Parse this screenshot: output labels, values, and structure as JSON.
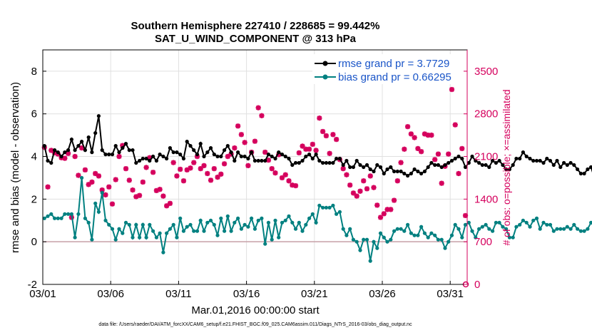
{
  "chart_data": {
    "type": "line",
    "title": "Southern Hemisphere 227410 / 228685 = 99.442%",
    "subtitle": "SAT_U_WIND_COMPONENT @ 313 hPa",
    "ylabel": "rmse and bias (model - observation)",
    "ylabel_right": "# of obs: o=possible; ×=assimilated",
    "xlabel": "Mar.01,2016 00:00:00 start",
    "footnote": "data file: /Users/raeder/DAI/ATM_forcXX/CAM6_setup/f.e21.FHIST_BGC.f09_025.CAM6assim.011/Diags_NTrS_2016-03/obs_diag_output.nc",
    "x_ticks": [
      {
        "day": 1,
        "label": "03/01"
      },
      {
        "day": 6,
        "label": "03/06"
      },
      {
        "day": 11,
        "label": "03/11"
      },
      {
        "day": 16,
        "label": "03/16"
      },
      {
        "day": 21,
        "label": "03/21"
      },
      {
        "day": 26,
        "label": "03/26"
      },
      {
        "day": 31,
        "label": "03/31"
      }
    ],
    "xlim": [
      1,
      32.25
    ],
    "ylim": [
      -2,
      9
    ],
    "y_ticks": [
      "-2",
      "0",
      "2",
      "4",
      "6",
      "8"
    ],
    "ylim_right": [
      0,
      3850
    ],
    "y_ticks_right": [
      "0",
      "700",
      "1400",
      "2100",
      "2800",
      "3500"
    ],
    "legend_position": "top-right",
    "colors": {
      "rmse": "#000000",
      "bias": "#008080",
      "obs": "#d5005d",
      "zero_line": "#c8a0a8",
      "grid": "#e0e0e0"
    },
    "series": [
      {
        "name": "rmse grand pr = 3.7729",
        "color": "#000000",
        "values": [
          4.5,
          3.8,
          3.7,
          4.3,
          4.2,
          4.0,
          4.2,
          4.3,
          4.8,
          4.3,
          4.5,
          4.7,
          4.3,
          4.9,
          4.2,
          5.1,
          5.9,
          4.3,
          4.1,
          4.1,
          4.1,
          4.5,
          4.2,
          4.4,
          4.6,
          4.3,
          4.3,
          3.7,
          3.8,
          3.9,
          3.9,
          3.8,
          4.0,
          3.8,
          4.1,
          4.0,
          3.9,
          4.4,
          4.2,
          4.2,
          4.1,
          3.9,
          4.7,
          4.5,
          4.3,
          4.1,
          4.6,
          4.0,
          4.2,
          4.4,
          4.1,
          4.0,
          4.0,
          4.3,
          4.5,
          4.2,
          3.8,
          4.2,
          4.0,
          4.0,
          3.9,
          4.2,
          3.8,
          3.8,
          3.8,
          3.8,
          4.1,
          4.0,
          3.9,
          4.2,
          4.1,
          4.0,
          3.9,
          3.6,
          3.7,
          3.7,
          3.8,
          4.0,
          4.1,
          3.9,
          4.1,
          3.8,
          3.7,
          3.7,
          3.7,
          3.7,
          3.9,
          3.9,
          3.6,
          3.8,
          3.5,
          3.5,
          3.8,
          3.6,
          3.5,
          3.6,
          3.4,
          3.3,
          3.6,
          3.5,
          3.2,
          3.4,
          3.5,
          3.3,
          3.3,
          3.3,
          3.2,
          3.1,
          3.2,
          3.4,
          3.3,
          3.2,
          3.3,
          3.5,
          3.7,
          3.6,
          3.6,
          3.5,
          3.6,
          3.7,
          3.8,
          3.9,
          4.0,
          3.9,
          3.5,
          3.7,
          4.0,
          3.8,
          3.7,
          3.6,
          3.6,
          3.5,
          3.8,
          3.7,
          3.8,
          3.6,
          3.4,
          3.4,
          3.6,
          3.9,
          3.9,
          4.2,
          4.0,
          3.9,
          3.8,
          3.8,
          3.8,
          3.7,
          3.9,
          3.8,
          3.6,
          3.8,
          3.5,
          3.7,
          3.6,
          3.7,
          3.6,
          3.4,
          3.2,
          3.2,
          3.4,
          3.5,
          3.0,
          3.3,
          2.9,
          2.9,
          3.1,
          3.0,
          2.9,
          3.4,
          3.5,
          3.7,
          3.6,
          3.3,
          3.2,
          3.3,
          3.4,
          3.5,
          3.6,
          3.5,
          3.6,
          3.5,
          3.6,
          3.7,
          3.6
        ]
      },
      {
        "name": "bias grand pr = 0.66295",
        "color": "#008080",
        "values": [
          1.1,
          1.2,
          1.3,
          1.1,
          1.1,
          1.1,
          1.3,
          1.3,
          1.3,
          0.2,
          1.3,
          3.0,
          1.1,
          0.9,
          0.1,
          1.8,
          1.4,
          2.3,
          1.0,
          0.8,
          0.6,
          0.1,
          0.6,
          0.4,
          0.9,
          0.8,
          0.2,
          0.8,
          0.2,
          0.8,
          0.2,
          0.8,
          0.5,
          0.2,
          0.4,
          -0.5,
          0.4,
          0.6,
          0.8,
          0.2,
          1.1,
          0.5,
          0.7,
          0.8,
          0.5,
          0.5,
          1.0,
          0.5,
          0.9,
          1.0,
          0.8,
          0.3,
          1.1,
          0.5,
          1.2,
          0.5,
          0.9,
          1.1,
          0.6,
          0.8,
          0.7,
          1.1,
          0.6,
          1.0,
          1.1,
          -0.1,
          0.9,
          0.1,
          1.0,
          0.2,
          0.9,
          1.0,
          1.2,
          0.9,
          0.6,
          0.9,
          0.5,
          0.8,
          1.1,
          1.3,
          0.9,
          1.7,
          1.6,
          1.6,
          1.6,
          1.7,
          1.3,
          1.4,
          0.6,
          0.3,
          0.6,
          0.1,
          0.0,
          -0.4,
          0.1,
          0.1,
          -0.9,
          0.0,
          -0.3,
          0.4,
          0.2,
          0.0,
          0.1,
          0.5,
          0.6,
          0.6,
          0.5,
          0.8,
          0.4,
          0.3,
          0.3,
          0.7,
          0.4,
          0.2,
          0.4,
          0.3,
          0.1,
          0.1,
          -0.3,
          0.0,
          0.3,
          0.8,
          0.6,
          0.2,
          0.8,
          0.9,
          0.5,
          0.2,
          0.6,
          0.7,
          0.8,
          0.6,
          0.5,
          0.9,
          0.9,
          0.7,
          0.6,
          0.2,
          0.2,
          0.7,
          0.8,
          1.0,
          0.9,
          0.7,
          1.0,
          1.1,
          0.6,
          0.9,
          0.8,
          0.8,
          0.5,
          0.6,
          0.6,
          0.6,
          0.7,
          0.6,
          0.8,
          0.6,
          0.5,
          0.5,
          0.6,
          0.9,
          0.7,
          0.6,
          0.8,
          0.7,
          0.8,
          0.7,
          0.5,
          0.9,
          0.6,
          0.8,
          0.8,
          1.0,
          0.7,
          0.8,
          0.7,
          0.8,
          1.3,
          1.1,
          1.2,
          1.4
        ]
      }
    ],
    "obs_assimilated": [
      [
        1.12,
        2250
      ],
      [
        1.37,
        1600
      ],
      [
        1.62,
        2200
      ],
      [
        1.87,
        2160
      ],
      [
        2.12,
        2140
      ],
      [
        2.37,
        2080
      ],
      [
        2.62,
        2070
      ],
      [
        2.87,
        2150
      ],
      [
        3.12,
        1100
      ],
      [
        3.37,
        2100
      ],
      [
        3.62,
        1790
      ],
      [
        3.87,
        2240
      ],
      [
        4.12,
        1880
      ],
      [
        4.37,
        1640
      ],
      [
        4.62,
        1680
      ],
      [
        4.87,
        1820
      ],
      [
        5.12,
        1780
      ],
      [
        5.37,
        1550
      ],
      [
        5.62,
        1470
      ],
      [
        5.87,
        1600
      ],
      [
        6.12,
        1320
      ],
      [
        6.37,
        1720
      ],
      [
        6.62,
        2100
      ],
      [
        6.87,
        2280
      ],
      [
        7.12,
        1900
      ],
      [
        7.37,
        1710
      ],
      [
        7.62,
        1550
      ],
      [
        7.87,
        1440
      ],
      [
        8.12,
        1460
      ],
      [
        8.37,
        1680
      ],
      [
        8.62,
        1920
      ],
      [
        8.87,
        2080
      ],
      [
        9.12,
        1840
      ],
      [
        9.37,
        1540
      ],
      [
        9.62,
        1560
      ],
      [
        9.87,
        1450
      ],
      [
        10.12,
        1290
      ],
      [
        10.37,
        1330
      ],
      [
        10.62,
        2000
      ],
      [
        10.87,
        1780
      ],
      [
        11.12,
        1890
      ],
      [
        11.37,
        1700
      ],
      [
        11.62,
        1880
      ],
      [
        11.87,
        1910
      ],
      [
        12.12,
        2000
      ],
      [
        12.37,
        2100
      ],
      [
        12.62,
        1900
      ],
      [
        12.87,
        1950
      ],
      [
        13.12,
        1820
      ],
      [
        13.37,
        1710
      ],
      [
        13.62,
        1900
      ],
      [
        13.87,
        1760
      ],
      [
        14.12,
        1810
      ],
      [
        14.37,
        1980
      ],
      [
        14.62,
        2100
      ],
      [
        14.87,
        2140
      ],
      [
        15.12,
        2240
      ],
      [
        15.37,
        2600
      ],
      [
        15.62,
        2460
      ],
      [
        15.87,
        2330
      ],
      [
        16.12,
        1950
      ],
      [
        16.37,
        2170
      ],
      [
        16.62,
        2350
      ],
      [
        16.87,
        2900
      ],
      [
        17.12,
        2770
      ],
      [
        17.37,
        2170
      ],
      [
        17.62,
        2040
      ],
      [
        17.87,
        1900
      ],
      [
        18.12,
        1830
      ],
      [
        18.37,
        2130
      ],
      [
        18.62,
        1750
      ],
      [
        18.87,
        1800
      ],
      [
        19.12,
        1700
      ],
      [
        19.37,
        1630
      ],
      [
        19.62,
        1620
      ],
      [
        19.87,
        2160
      ],
      [
        20.12,
        2270
      ],
      [
        20.37,
        2220
      ],
      [
        20.62,
        2220
      ],
      [
        20.87,
        2300
      ],
      [
        21.12,
        2200
      ],
      [
        21.37,
        2730
      ],
      [
        21.62,
        2510
      ],
      [
        21.87,
        2440
      ],
      [
        22.12,
        2150
      ],
      [
        22.37,
        2460
      ],
      [
        22.62,
        2380
      ],
      [
        22.87,
        2050
      ],
      [
        23.12,
        1900
      ],
      [
        23.37,
        1800
      ],
      [
        23.62,
        1630
      ],
      [
        23.87,
        1500
      ],
      [
        24.12,
        1450
      ],
      [
        24.37,
        1530
      ],
      [
        24.62,
        1700
      ],
      [
        24.87,
        1570
      ],
      [
        25.12,
        1780
      ],
      [
        25.37,
        1590
      ],
      [
        25.62,
        1300
      ],
      [
        25.87,
        1100
      ],
      [
        26.12,
        1160
      ],
      [
        26.37,
        1230
      ],
      [
        26.62,
        1230
      ],
      [
        26.87,
        1380
      ],
      [
        27.12,
        1700
      ],
      [
        27.37,
        2000
      ],
      [
        27.62,
        2220
      ],
      [
        27.87,
        2590
      ],
      [
        28.12,
        2470
      ],
      [
        28.37,
        2410
      ],
      [
        28.62,
        2230
      ],
      [
        28.87,
        2180
      ],
      [
        29.12,
        2470
      ],
      [
        29.37,
        2450
      ],
      [
        29.62,
        2450
      ],
      [
        29.87,
        2050
      ],
      [
        30.12,
        2140
      ],
      [
        30.37,
        1660
      ],
      [
        30.62,
        1940
      ],
      [
        30.87,
        2140
      ],
      [
        31.12,
        3200
      ],
      [
        31.37,
        2620
      ],
      [
        31.62,
        1820
      ],
      [
        31.87,
        2230
      ],
      [
        32.12,
        1130
      ]
    ],
    "obs_possible_bottom_right": [
      32.25,
      0
    ]
  }
}
